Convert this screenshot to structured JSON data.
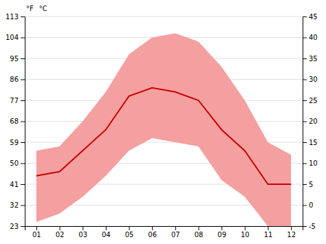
{
  "chart_data": {
    "type": "line",
    "x": [
      1,
      2,
      3,
      4,
      5,
      6,
      7,
      8,
      9,
      10,
      11,
      12
    ],
    "xlim": [
      0.5,
      12.5
    ],
    "xticks": [
      {
        "value": 1,
        "label": "01"
      },
      {
        "value": 2,
        "label": "02"
      },
      {
        "value": 3,
        "label": "03"
      },
      {
        "value": 4,
        "label": "04"
      },
      {
        "value": 5,
        "label": "05"
      },
      {
        "value": 6,
        "label": "06"
      },
      {
        "value": 7,
        "label": "07"
      },
      {
        "value": 8,
        "label": "08"
      },
      {
        "value": 9,
        "label": "09"
      },
      {
        "value": 10,
        "label": "10"
      },
      {
        "value": 11,
        "label": "11"
      },
      {
        "value": 12,
        "label": "12"
      }
    ],
    "ylim": [
      23,
      113
    ],
    "yticks": [
      23,
      32,
      41,
      50,
      59,
      68,
      77,
      86,
      95,
      104,
      113
    ],
    "y2lim": [
      -5,
      45
    ],
    "y2ticks": [
      -5,
      0,
      5,
      10,
      15,
      20,
      25,
      30,
      35,
      40,
      45
    ],
    "grid": true,
    "annotations": [
      "°F",
      "°C"
    ],
    "series": [
      {
        "type": "area",
        "color": "#f4a0a0",
        "values": [
          55.4,
          57.2,
          68.0,
          80.6,
          96.8,
          104.0,
          105.8,
          102.2,
          91.4,
          77.0,
          59.0,
          53.6
        ],
        "low": [
          24.8,
          28.4,
          35.6,
          44.6,
          55.4,
          60.8,
          59.0,
          57.2,
          42.8,
          35.6,
          23.0,
          23.0
        ]
      },
      {
        "type": "line",
        "color": "#cc0000",
        "values": [
          44.6,
          46.4,
          55.4,
          64.4,
          78.8,
          82.4,
          80.6,
          77.0,
          64.4,
          55.4,
          41.0,
          41.0
        ]
      }
    ]
  }
}
